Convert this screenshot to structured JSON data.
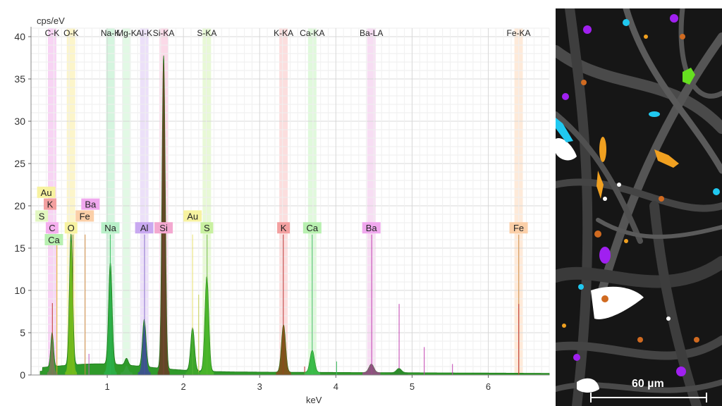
{
  "chart_data": {
    "type": "area",
    "ylabel": "cps/eV",
    "xlabel": "keV",
    "xlim": [
      0,
      6.8
    ],
    "ylim": [
      0,
      41
    ],
    "x_ticks": [
      1,
      2,
      3,
      4,
      5,
      6
    ],
    "y_ticks": [
      0,
      5,
      10,
      15,
      20,
      25,
      30,
      35,
      40
    ],
    "grid": true,
    "element_bands": [
      {
        "label": "C-K",
        "energy": 0.277,
        "color": "#f5c6f0"
      },
      {
        "label": "O-K",
        "energy": 0.525,
        "color": "#fbf2b8"
      },
      {
        "label": "Na-K",
        "energy": 1.041,
        "color": "#c7f2d4"
      },
      {
        "label": "Mg-K",
        "energy": 1.253,
        "color": "#d8f7dc"
      },
      {
        "label": "Al-K",
        "energy": 1.486,
        "color": "#e6d6f7"
      },
      {
        "label": "Si-KA",
        "energy": 1.74,
        "color": "#f9cde0"
      },
      {
        "label": "S-KA",
        "energy": 2.307,
        "color": "#e0f7c8"
      },
      {
        "label": "K-KA",
        "energy": 3.313,
        "color": "#fbd3d3"
      },
      {
        "label": "Ca-KA",
        "energy": 3.69,
        "color": "#d6f7d0"
      },
      {
        "label": "Ba-LA",
        "energy": 4.466,
        "color": "#f4d2ef"
      },
      {
        "label": "Fe-KA",
        "energy": 6.398,
        "color": "#fde3cc"
      }
    ],
    "element_tags": [
      {
        "label": "Au",
        "energy": 0.2,
        "y": 21.6,
        "color": "#f7f2a0"
      },
      {
        "label": "K",
        "energy": 0.25,
        "y": 20.2,
        "color": "#f3a0a0"
      },
      {
        "label": "S",
        "energy": 0.14,
        "y": 18.8,
        "color": "#e2f7c0"
      },
      {
        "label": "C",
        "energy": 0.277,
        "y": 17.4,
        "color": "#f5b0ee"
      },
      {
        "label": "Ca",
        "energy": 0.3,
        "y": 16.0,
        "color": "#b8f0b0"
      },
      {
        "label": "Ba",
        "energy": 0.78,
        "y": 20.2,
        "color": "#f0a8ee"
      },
      {
        "label": "Fe",
        "energy": 0.705,
        "y": 18.8,
        "color": "#fbcfa8"
      },
      {
        "label": "O",
        "energy": 0.525,
        "y": 17.4,
        "color": "#f7f2a0"
      },
      {
        "label": "Na",
        "energy": 1.041,
        "y": 17.4,
        "color": "#b8f0c8"
      },
      {
        "label": "Al",
        "energy": 1.486,
        "y": 17.4,
        "color": "#c8a8f0"
      },
      {
        "label": "Si",
        "energy": 1.74,
        "y": 17.4,
        "color": "#f3a8d0"
      },
      {
        "label": "Au",
        "energy": 2.12,
        "y": 18.8,
        "color": "#f7f2a0"
      },
      {
        "label": "S",
        "energy": 2.307,
        "y": 17.4,
        "color": "#c8f0a0"
      },
      {
        "label": "K",
        "energy": 3.313,
        "y": 17.4,
        "color": "#f3a0a0"
      },
      {
        "label": "Ca",
        "energy": 3.69,
        "y": 17.4,
        "color": "#b8f0b0"
      },
      {
        "label": "Ba",
        "energy": 4.466,
        "y": 17.4,
        "color": "#f0a8ee"
      },
      {
        "label": "Fe",
        "energy": 6.398,
        "y": 17.4,
        "color": "#fbcfa8"
      }
    ],
    "peaks": [
      {
        "element": "C",
        "energy": 0.277,
        "height": 4.0,
        "width": 0.025,
        "color": "#7a7a5a"
      },
      {
        "element": "O",
        "energy": 0.525,
        "height": 15.5,
        "width": 0.03,
        "color": "#7bbf1a"
      },
      {
        "element": "Na",
        "energy": 1.041,
        "height": 12.0,
        "width": 0.032,
        "color": "#2bb04a"
      },
      {
        "element": "Mg",
        "energy": 1.253,
        "height": 0.8,
        "width": 0.03,
        "color": "#3aa040"
      },
      {
        "element": "Al",
        "energy": 1.486,
        "height": 5.6,
        "width": 0.032,
        "color": "#3d4a9a"
      },
      {
        "element": "Si",
        "energy": 1.74,
        "height": 37.0,
        "width": 0.03,
        "color": "#6b3a26"
      },
      {
        "element": "Au",
        "energy": 2.12,
        "height": 5.1,
        "width": 0.035,
        "color": "#3fa82a"
      },
      {
        "element": "S",
        "energy": 2.307,
        "height": 11.2,
        "width": 0.035,
        "color": "#4cb82a"
      },
      {
        "element": "K",
        "energy": 3.313,
        "height": 5.6,
        "width": 0.038,
        "color": "#8a4a1a"
      },
      {
        "element": "Ca",
        "energy": 3.69,
        "height": 2.6,
        "width": 0.04,
        "color": "#3cc04c"
      },
      {
        "element": "Ba",
        "energy": 4.466,
        "height": 1.0,
        "width": 0.045,
        "color": "#9a4a8a"
      },
      {
        "element": "Ba",
        "energy": 4.828,
        "height": 0.5,
        "width": 0.045,
        "color": "#2a8a2a"
      }
    ],
    "background_level": 0.45,
    "marker_lines": [
      {
        "energy": 0.28,
        "height": 8.5,
        "color": "#c0392b"
      },
      {
        "energy": 0.34,
        "height": 15.5,
        "color": "#e0a020"
      },
      {
        "energy": 0.55,
        "height": 16.6,
        "color": "#8a8a30"
      },
      {
        "energy": 0.71,
        "height": 16.6,
        "color": "#d08a40"
      },
      {
        "energy": 0.76,
        "height": 2.5,
        "color": "#c060c0"
      },
      {
        "energy": 1.04,
        "height": 16.6,
        "color": "#3cc060"
      },
      {
        "energy": 1.49,
        "height": 16.6,
        "color": "#8a6ad0"
      },
      {
        "energy": 1.74,
        "height": 16.6,
        "color": "#d07aa0"
      },
      {
        "energy": 2.12,
        "height": 16.6,
        "color": "#e8e070"
      },
      {
        "energy": 2.2,
        "height": 9.5,
        "color": "#c8d050"
      },
      {
        "energy": 2.31,
        "height": 16.6,
        "color": "#70c040"
      },
      {
        "energy": 3.31,
        "height": 16.6,
        "color": "#c03030"
      },
      {
        "energy": 3.59,
        "height": 1.0,
        "color": "#c03030"
      },
      {
        "energy": 3.69,
        "height": 16.6,
        "color": "#3cc060"
      },
      {
        "energy": 4.01,
        "height": 1.6,
        "color": "#3cc060"
      },
      {
        "energy": 4.47,
        "height": 16.6,
        "color": "#c040b0"
      },
      {
        "energy": 4.83,
        "height": 8.4,
        "color": "#c040b0"
      },
      {
        "energy": 5.16,
        "height": 3.3,
        "color": "#c040b0"
      },
      {
        "energy": 5.53,
        "height": 1.3,
        "color": "#c040b0"
      },
      {
        "energy": 6.4,
        "height": 16.6,
        "color": "#d08a40"
      },
      {
        "energy": 6.4,
        "height": 8.4,
        "color": "#c03030"
      }
    ]
  },
  "micrograph": {
    "scale_bar_label": "60 µm"
  }
}
